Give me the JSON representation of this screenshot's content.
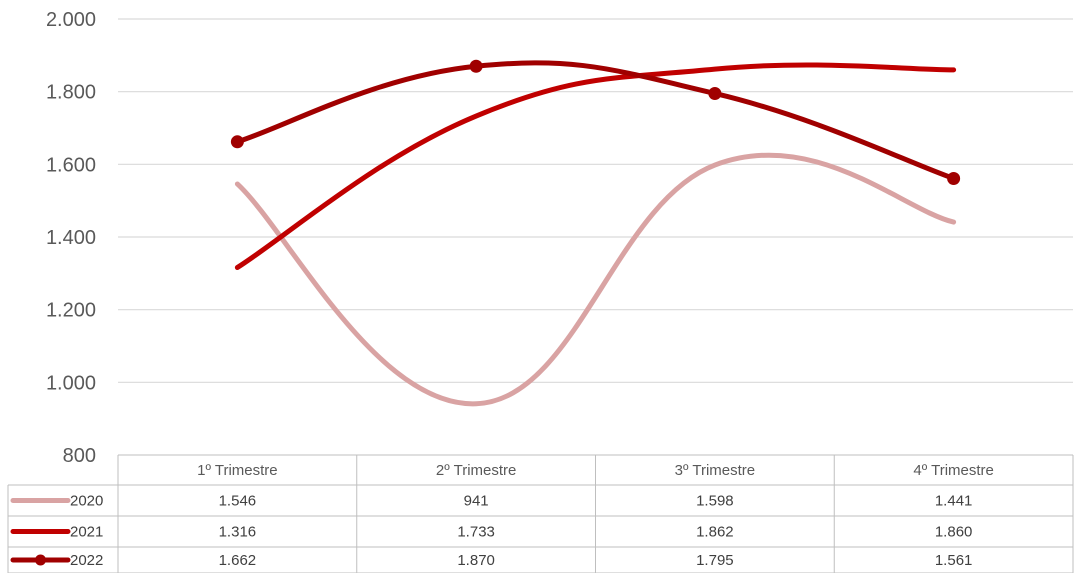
{
  "chart_data": {
    "type": "line",
    "title": "",
    "xlabel": "",
    "ylabel": "",
    "categories": [
      "1º Trimestre",
      "2º Trimestre",
      "3º Trimestre",
      "4º Trimestre"
    ],
    "ylim": [
      800,
      2000
    ],
    "yticks": [
      800,
      1000,
      1200,
      1400,
      1600,
      1800,
      2000
    ],
    "ytick_labels": [
      "800",
      "1.000",
      "1.200",
      "1.400",
      "1.600",
      "1.800",
      "2.000"
    ],
    "grid": true,
    "smooth": true,
    "legend": "data-table",
    "series": [
      {
        "name": "2020",
        "values": [
          1546,
          941,
          1598,
          1441
        ],
        "labels": [
          "1.546",
          "941",
          "1.598",
          "1.441"
        ],
        "color": "#d9a3a3",
        "markers": false
      },
      {
        "name": "2021",
        "values": [
          1316,
          1733,
          1862,
          1860
        ],
        "labels": [
          "1.316",
          "1.733",
          "1.862",
          "1.860"
        ],
        "color": "#c00000",
        "markers": false
      },
      {
        "name": "2022",
        "values": [
          1662,
          1870,
          1795,
          1561
        ],
        "labels": [
          "1.662",
          "1.870",
          "1.795",
          "1.561"
        ],
        "color": "#a00000",
        "markers": true
      }
    ]
  }
}
